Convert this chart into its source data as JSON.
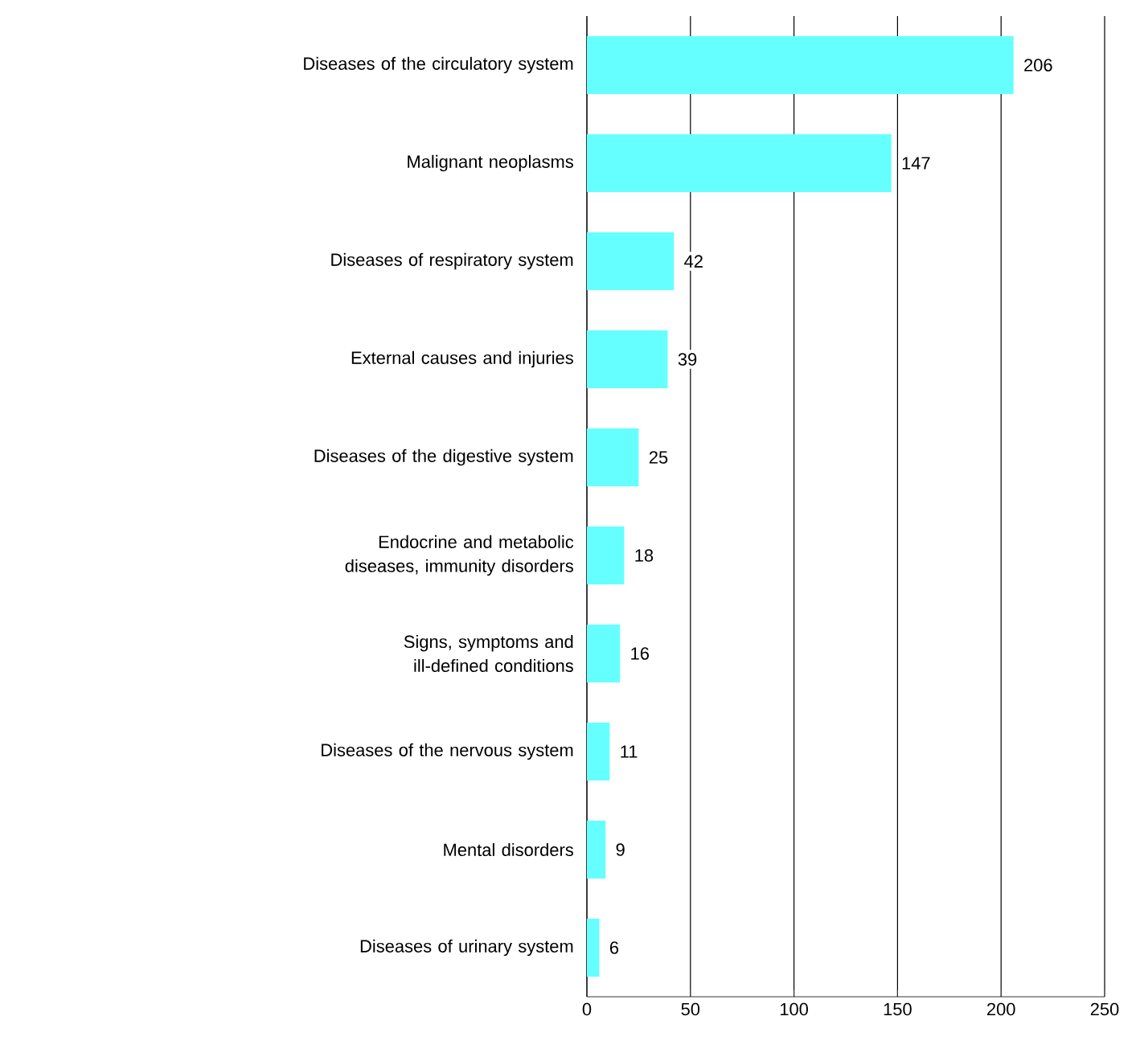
{
  "chart_data": {
    "type": "bar",
    "orientation": "horizontal",
    "categories": [
      "Diseases of the circulatory system",
      "Malignant neoplasms",
      "Diseases of respiratory system",
      "External causes and injuries",
      "Diseases of the digestive system",
      "Endocrine and metabolic diseases, immunity disorders",
      "Signs, symptoms and ill-defined conditions",
      "Diseases of the nervous system",
      "Mental disorders",
      "Diseases of urinary system"
    ],
    "values": [
      206,
      147,
      42,
      39,
      25,
      18,
      16,
      11,
      9,
      6
    ],
    "color": "#66ffff",
    "xlim": [
      0,
      250
    ],
    "xticks": [
      0,
      50,
      100,
      150,
      200,
      250
    ],
    "grid": "x",
    "data_labels": true
  }
}
